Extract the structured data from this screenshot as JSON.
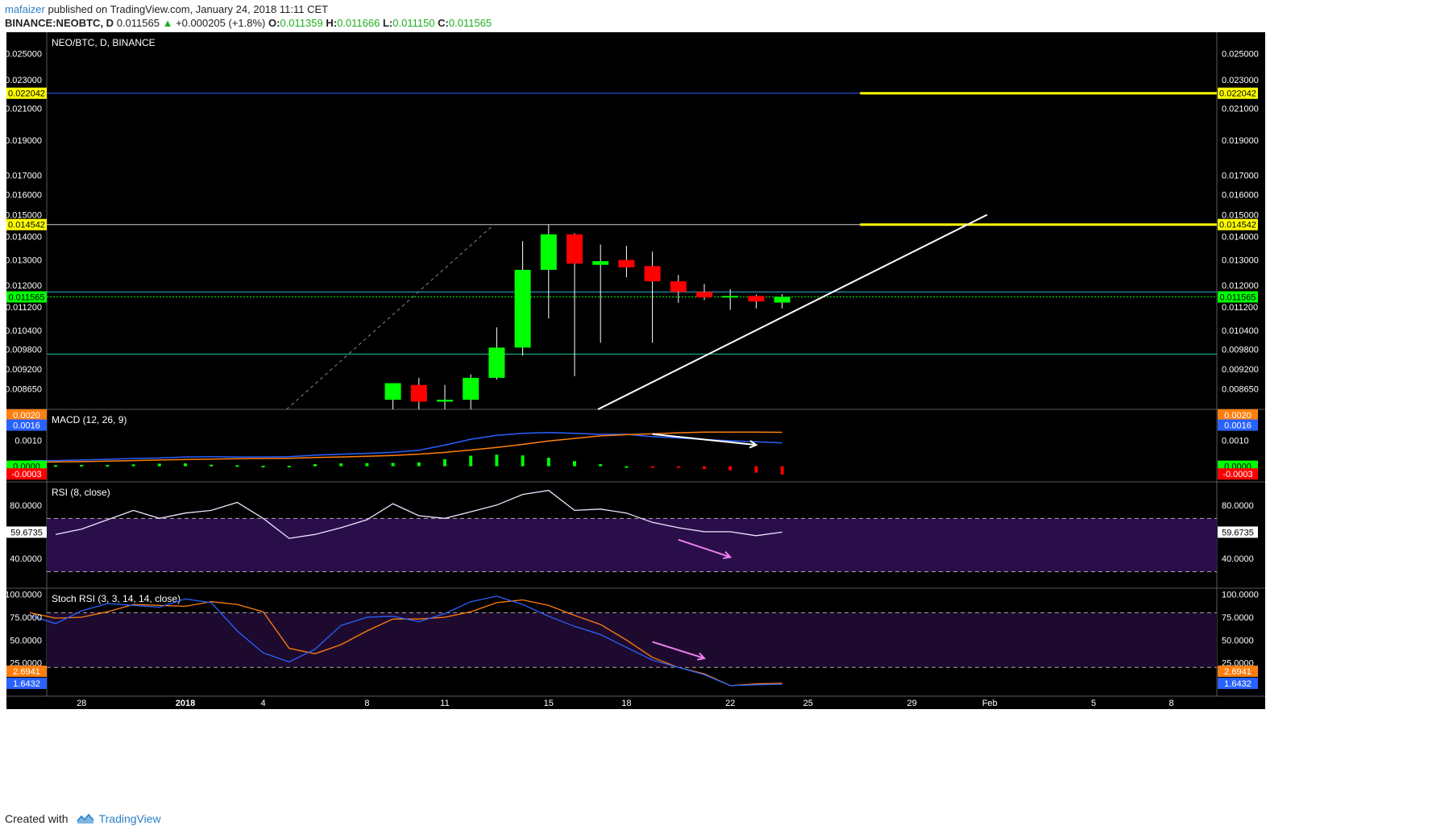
{
  "header": {
    "author": "mafaizer",
    "published": " published on TradingView.com, January 24, 2018 11:11 CET",
    "symbol": "BINANCE:NEOBTC, D",
    "last": "0.011565",
    "change_arrow": "▲",
    "change": "+0.000205 (+1.8%)",
    "o_label": "O:",
    "o_value": "0.011359",
    "h_label": "H:",
    "h_value": "0.011666",
    "l_label": "L:",
    "l_value": "0.011150",
    "c_label": "C:",
    "c_value": "0.011565"
  },
  "footer": {
    "created_with": "Created with",
    "brand": "TradingView"
  },
  "chart_data": {
    "type": "candlestick",
    "title": "NEO/BTC, D, BINANCE",
    "colors": {
      "up": "#00ff00",
      "down": "#ff0000",
      "background": "#000000",
      "rsi_band": "#2a0e4a",
      "macd_line": "#2962ff",
      "signal_line": "#ff7f0e",
      "hline": "#ffff00"
    },
    "price_axis": {
      "ticks": [
        "0.025000",
        "0.023000",
        "0.021000",
        "0.019000",
        "0.017000",
        "0.016000",
        "0.015000",
        "0.014000",
        "0.013000",
        "0.012000",
        "0.011200",
        "0.010400",
        "0.009800",
        "0.009200",
        "0.008650"
      ],
      "tick_values": [
        0.025,
        0.023,
        0.021,
        0.019,
        0.017,
        0.016,
        0.015,
        0.014,
        0.013,
        0.012,
        0.0112,
        0.0104,
        0.0098,
        0.0092,
        0.00865
      ],
      "log_scale": true,
      "range": [
        0.0081,
        0.0262
      ],
      "price_labels": [
        {
          "text": "0.022042",
          "value": 0.022042,
          "color": "#ffff00"
        },
        {
          "text": "0.014542",
          "value": 0.014542,
          "color": "#ffff00"
        },
        {
          "text": "0.011565",
          "value": 0.011565,
          "color": "#00ff00"
        }
      ]
    },
    "x_axis": {
      "labels": [
        "28",
        "2018",
        "4",
        "8",
        "11",
        "15",
        "18",
        "22",
        "25",
        "29",
        "Feb",
        "5",
        "8"
      ],
      "label_days": [
        -4,
        0,
        3,
        7,
        10,
        14,
        17,
        21,
        24,
        28,
        31,
        35,
        38
      ]
    },
    "candles": [
      {
        "day": 8,
        "o": 0.00835,
        "h": 0.0088,
        "l": 0.008,
        "c": 0.0088
      },
      {
        "day": 9,
        "o": 0.00875,
        "h": 0.00895,
        "l": 0.008,
        "c": 0.0083
      },
      {
        "day": 10,
        "o": 0.0083,
        "h": 0.00875,
        "l": 0.0079,
        "c": 0.00835
      },
      {
        "day": 11,
        "o": 0.00835,
        "h": 0.00905,
        "l": 0.008,
        "c": 0.00895
      },
      {
        "day": 12,
        "o": 0.00895,
        "h": 0.0105,
        "l": 0.0089,
        "c": 0.00985
      },
      {
        "day": 13,
        "o": 0.00985,
        "h": 0.0138,
        "l": 0.0096,
        "c": 0.0126
      },
      {
        "day": 14,
        "o": 0.0126,
        "h": 0.01455,
        "l": 0.0108,
        "c": 0.0141
      },
      {
        "day": 15,
        "o": 0.0141,
        "h": 0.01415,
        "l": 0.009,
        "c": 0.01285
      },
      {
        "day": 16,
        "o": 0.0128,
        "h": 0.01365,
        "l": 0.01,
        "c": 0.01295
      },
      {
        "day": 17,
        "o": 0.013,
        "h": 0.0136,
        "l": 0.0123,
        "c": 0.0127
      },
      {
        "day": 18,
        "o": 0.01275,
        "h": 0.01335,
        "l": 0.01,
        "c": 0.01215
      },
      {
        "day": 19,
        "o": 0.01215,
        "h": 0.0124,
        "l": 0.01135,
        "c": 0.01175
      },
      {
        "day": 20,
        "o": 0.01175,
        "h": 0.01205,
        "l": 0.01145,
        "c": 0.01155
      },
      {
        "day": 21,
        "o": 0.01155,
        "h": 0.01185,
        "l": 0.0111,
        "c": 0.0116
      },
      {
        "day": 22,
        "o": 0.0116,
        "h": 0.01165,
        "l": 0.01115,
        "c": 0.0114
      },
      {
        "day": 23,
        "o": 0.01136,
        "h": 0.01167,
        "l": 0.01115,
        "c": 0.01157
      }
    ],
    "horizontal_levels": [
      {
        "value": 0.022042,
        "color": "#2962ff"
      },
      {
        "value": 0.014542,
        "color": "#cccccc"
      },
      {
        "value": 0.011565,
        "color": "#00ff00"
      },
      {
        "value": 0.01175,
        "color": "#3ab0e0"
      },
      {
        "value": 0.00965,
        "color": "#18c7a0"
      }
    ],
    "yellow_segments": [
      {
        "value": 0.022042,
        "from_day": 26
      },
      {
        "value": 0.014542,
        "from_day": 26
      }
    ],
    "trendline": {
      "from": {
        "day": 15.9,
        "value": 0.0081
      },
      "to": {
        "day": 30.9,
        "value": 0.015
      }
    },
    "dashed_line": {
      "from": {
        "day": 3.9,
        "value": 0.0081
      },
      "to": {
        "day": 11.9,
        "value": 0.01455
      }
    },
    "macd": {
      "title": "MACD (12, 26, 9)",
      "ticks": [
        "0.0020",
        "0.0016",
        "0.0010",
        "0.0000",
        "-0.0003"
      ],
      "tick_values": [
        0.002,
        0.0016,
        0.001,
        0.0,
        -0.0003
      ],
      "label_colors": [
        "#ff7f0e",
        "#2962ff",
        "",
        "#00ff00",
        "#ff0000"
      ],
      "range": [
        -0.00042,
        0.00215
      ],
      "macd": [
        0.00021,
        0.00022,
        0.00024,
        0.00027,
        0.0003,
        0.00032,
        0.00036,
        0.00037,
        0.00036,
        0.00036,
        0.00037,
        0.00043,
        0.00047,
        0.0005,
        0.00054,
        0.00062,
        0.00082,
        0.00105,
        0.0012,
        0.00128,
        0.00131,
        0.00128,
        0.00124,
        0.00124,
        0.00115,
        0.0011,
        0.00104,
        0.00099,
        0.00095,
        0.00091
      ],
      "signal": [
        0.00015,
        0.00017,
        0.00018,
        0.0002,
        0.00022,
        0.00024,
        0.00026,
        0.00028,
        0.00029,
        0.0003,
        0.00031,
        0.00034,
        0.00036,
        0.00039,
        0.00042,
        0.00047,
        0.00054,
        0.00063,
        0.00073,
        0.00085,
        0.00098,
        0.00108,
        0.00118,
        0.00123,
        0.00126,
        0.0013,
        0.00133,
        0.00133,
        0.00133,
        0.00132
      ],
      "hist": [
        4e-05,
        4e-05,
        5e-05,
        5e-05,
        7e-05,
        0.0001,
        0.00011,
        6e-05,
        4e-05,
        2e-05,
        2e-05,
        8e-05,
        0.00011,
        0.00012,
        0.00013,
        0.00015,
        0.00027,
        0.00041,
        0.00045,
        0.00042,
        0.00033,
        0.0002,
        8e-05,
        0.0,
        -3e-05,
        -6e-05,
        -0.00011,
        -0.00016,
        -0.00025,
        -0.00032
      ],
      "arrow": {
        "from": {
          "day": 18,
          "value": 0.00125
        },
        "to": {
          "day": 22,
          "value": 0.00083
        }
      }
    },
    "rsi": {
      "title": "RSI (8, close)",
      "ticks": [
        "80.0000",
        "40.0000"
      ],
      "tick_values": [
        80,
        40
      ],
      "band": [
        30,
        70
      ],
      "current_label": "59.6735",
      "current_value": 59.6735,
      "range": [
        20,
        95
      ],
      "values": [
        58,
        62,
        69,
        76,
        70,
        74,
        76,
        82,
        70,
        55,
        58,
        63,
        69,
        81,
        72,
        70,
        75,
        80,
        88,
        91,
        76,
        77,
        74,
        67,
        63,
        60,
        60,
        57,
        59.6735
      ],
      "arrow": {
        "from": {
          "day": 19,
          "value": 54
        },
        "to": {
          "day": 21,
          "value": 41
        }
      }
    },
    "stoch_rsi": {
      "title": "Stoch RSI (3, 3, 14, 14, close)",
      "ticks": [
        "100.0000",
        "75.0000",
        "50.0000",
        "25.0000"
      ],
      "tick_values": [
        100,
        75,
        50,
        25
      ],
      "band": [
        20,
        80
      ],
      "current_labels": [
        {
          "text": "2.6941",
          "value": 2.6941,
          "color": "#ff7f0e"
        },
        {
          "text": "1.6432",
          "value": 1.6432,
          "color": "#2962ff"
        }
      ],
      "range": [
        -8,
        105
      ],
      "k": [
        77,
        68,
        82,
        90,
        88,
        86,
        95,
        91,
        60,
        36,
        26,
        40,
        66,
        75,
        76,
        70,
        79,
        92,
        98,
        89,
        76,
        65,
        56,
        42,
        28,
        20,
        12,
        0,
        1,
        1.6432
      ],
      "d": [
        80,
        74,
        75,
        81,
        89,
        88,
        87,
        92,
        89,
        81,
        41,
        35,
        45,
        60,
        73,
        73,
        75,
        81,
        91,
        94,
        88,
        77,
        67,
        50,
        31,
        20,
        13,
        0,
        2,
        2.6941
      ],
      "arrow": {
        "from": {
          "day": 18,
          "value": 48
        },
        "to": {
          "day": 20,
          "value": 30
        }
      }
    }
  }
}
